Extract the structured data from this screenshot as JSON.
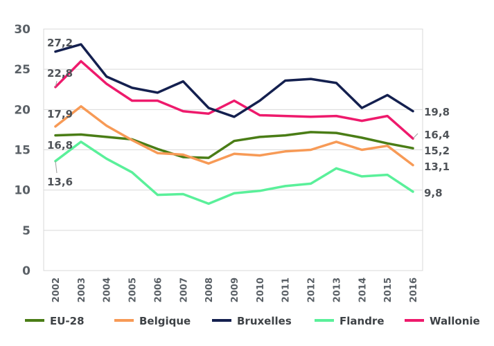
{
  "chart_data": {
    "type": "line",
    "title": "",
    "xlabel": "",
    "ylabel": "",
    "ylim": [
      0,
      30
    ],
    "yticks": [
      0,
      5,
      10,
      15,
      20,
      25,
      30
    ],
    "grid": "horizontal",
    "legend_position": "bottom",
    "x": [
      "2002",
      "2003",
      "2004",
      "2005",
      "2006",
      "2007",
      "2008",
      "2009",
      "2010",
      "2011",
      "2012",
      "2013",
      "2014",
      "2015",
      "2016"
    ],
    "series": [
      {
        "name": "EU-28",
        "color": "#4a7d16",
        "values": [
          16.8,
          16.9,
          16.6,
          16.3,
          15.1,
          14.1,
          14.0,
          16.1,
          16.6,
          16.8,
          17.2,
          17.1,
          16.5,
          15.8,
          15.2
        ]
      },
      {
        "name": "Belgique",
        "color": "#f79a56",
        "values": [
          17.9,
          20.4,
          18.0,
          16.2,
          14.6,
          14.4,
          13.3,
          14.5,
          14.3,
          14.8,
          15.0,
          16.0,
          15.0,
          15.5,
          13.1
        ]
      },
      {
        "name": "Bruxelles",
        "color": "#14204f",
        "values": [
          27.2,
          28.1,
          24.1,
          22.7,
          22.1,
          23.5,
          20.2,
          19.1,
          21.1,
          23.6,
          23.8,
          23.3,
          20.2,
          21.8,
          19.8
        ]
      },
      {
        "name": "Flandre",
        "color": "#5af09a",
        "values": [
          13.6,
          16.0,
          13.9,
          12.2,
          9.4,
          9.5,
          8.3,
          9.6,
          9.9,
          10.5,
          10.8,
          12.7,
          11.7,
          11.9,
          9.8
        ]
      },
      {
        "name": "Wallonie",
        "color": "#ee1a6c",
        "values": [
          22.8,
          26.0,
          23.2,
          21.1,
          21.1,
          19.8,
          19.5,
          21.1,
          19.3,
          19.2,
          19.1,
          19.2,
          18.6,
          19.2,
          16.4
        ]
      }
    ],
    "annotations": [
      {
        "text": "27,2",
        "series": "Bruxelles",
        "x": "2002"
      },
      {
        "text": "22,8",
        "series": "Wallonie",
        "x": "2002"
      },
      {
        "text": "17,9",
        "series": "Belgique",
        "x": "2002"
      },
      {
        "text": "16,8",
        "series": "EU-28",
        "x": "2002"
      },
      {
        "text": "13,6",
        "series": "Flandre",
        "x": "2002"
      },
      {
        "text": "19,8",
        "series": "Bruxelles",
        "x": "2016"
      },
      {
        "text": "16,4",
        "series": "Wallonie",
        "x": "2016"
      },
      {
        "text": "15,2",
        "series": "EU-28",
        "x": "2016"
      },
      {
        "text": "13,1",
        "series": "Belgique",
        "x": "2016"
      },
      {
        "text": "9,8",
        "series": "Flandre",
        "x": "2016"
      }
    ]
  }
}
